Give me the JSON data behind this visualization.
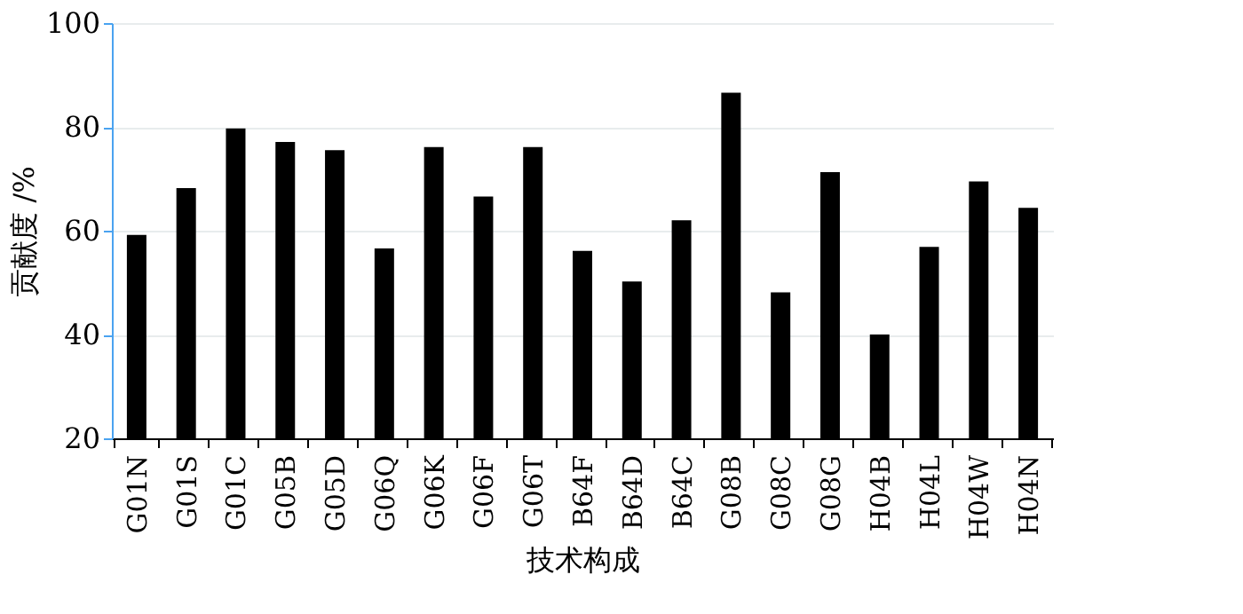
{
  "chart_data": {
    "type": "bar",
    "xlabel": "技术构成",
    "ylabel": "贡献度 /%",
    "categories": [
      "G01N",
      "G01S",
      "G01C",
      "G05B",
      "G05D",
      "G06Q",
      "G06K",
      "G06F",
      "G06T",
      "B64F",
      "B64D",
      "B64C",
      "G08B",
      "G08C",
      "G08G",
      "H04B",
      "H04L",
      "H04W",
      "H04N"
    ],
    "values": [
      59.2,
      68.2,
      79.7,
      77.1,
      75.5,
      56.6,
      76.1,
      66.6,
      76.1,
      56.1,
      50.2,
      62.0,
      86.6,
      48.1,
      71.3,
      40.0,
      56.9,
      69.5,
      64.4
    ],
    "color": "#000000",
    "ylim": [
      20,
      100
    ],
    "yticks": [
      20,
      40,
      60,
      80,
      100
    ],
    "grid": "y"
  }
}
